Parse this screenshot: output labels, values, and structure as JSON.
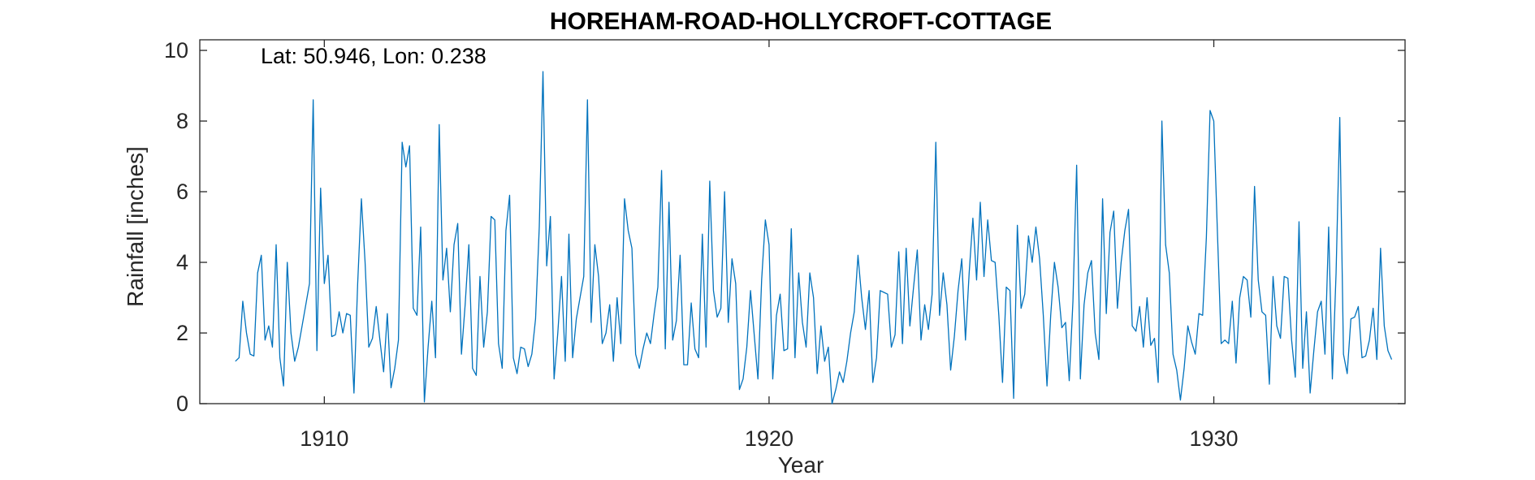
{
  "chart_data": {
    "type": "line",
    "title": "HOREHAM-ROAD-HOLLYCROFT-COTTAGE",
    "annotation": "Lat: 50.946, Lon: 0.238",
    "xlabel": "Year",
    "ylabel": "Rainfall [inches]",
    "xlim": [
      1907.2,
      1934.3
    ],
    "ylim": [
      0,
      10.3
    ],
    "xticks": [
      1910,
      1920,
      1930
    ],
    "xtick_labels": [
      "1910",
      "1920",
      "1930"
    ],
    "yticks": [
      0,
      2,
      4,
      6,
      8,
      10
    ],
    "ytick_labels": [
      "0",
      "2",
      "4",
      "6",
      "8",
      "10"
    ],
    "grid": false,
    "series": [
      {
        "color": "#0072bd",
        "x_start": 1908.0,
        "x_step": 0.08333,
        "values": [
          1.2,
          1.3,
          2.9,
          2.0,
          1.4,
          1.35,
          3.7,
          4.2,
          1.8,
          2.2,
          1.6,
          4.5,
          1.3,
          0.5,
          4.0,
          2.0,
          1.2,
          1.6,
          2.2,
          2.8,
          3.4,
          8.6,
          1.5,
          6.1,
          3.4,
          4.2,
          1.9,
          1.95,
          2.6,
          2.0,
          2.55,
          2.5,
          0.3,
          3.4,
          5.8,
          4.0,
          1.6,
          1.85,
          2.75,
          1.8,
          0.9,
          2.55,
          0.45,
          1.0,
          1.8,
          7.4,
          6.7,
          7.3,
          2.7,
          2.5,
          5.0,
          0.05,
          1.6,
          2.9,
          1.3,
          7.9,
          3.5,
          4.4,
          2.6,
          4.5,
          5.1,
          1.4,
          2.8,
          4.5,
          1.0,
          0.8,
          3.6,
          1.6,
          2.6,
          5.3,
          5.2,
          1.7,
          1.0,
          4.9,
          5.9,
          1.3,
          0.85,
          1.6,
          1.55,
          1.05,
          1.4,
          2.4,
          5.0,
          9.4,
          3.9,
          5.3,
          0.7,
          2.0,
          3.6,
          1.2,
          4.8,
          1.3,
          2.4,
          3.0,
          3.6,
          8.6,
          2.3,
          4.5,
          3.6,
          1.7,
          2.0,
          2.8,
          1.2,
          3.0,
          1.7,
          5.8,
          4.9,
          4.4,
          1.4,
          1.0,
          1.55,
          2.0,
          1.7,
          2.55,
          3.3,
          6.6,
          1.55,
          5.7,
          1.8,
          2.35,
          4.2,
          1.1,
          1.1,
          2.85,
          1.55,
          1.3,
          4.8,
          1.6,
          6.3,
          3.2,
          2.45,
          2.7,
          6.0,
          2.3,
          4.1,
          3.4,
          0.4,
          0.7,
          1.6,
          3.2,
          1.95,
          0.7,
          3.5,
          5.2,
          4.5,
          0.7,
          2.5,
          3.1,
          1.5,
          1.55,
          4.95,
          1.3,
          3.7,
          2.3,
          1.6,
          3.7,
          3.0,
          0.85,
          2.2,
          1.2,
          1.6,
          0.0,
          0.4,
          0.9,
          0.6,
          1.2,
          2.0,
          2.6,
          4.2,
          3.0,
          2.1,
          3.2,
          0.6,
          1.3,
          3.2,
          3.15,
          3.1,
          1.6,
          1.95,
          4.3,
          1.7,
          4.4,
          2.2,
          3.3,
          4.35,
          1.8,
          2.8,
          2.1,
          3.1,
          7.4,
          2.5,
          3.7,
          2.8,
          0.95,
          1.9,
          3.2,
          4.1,
          1.8,
          3.7,
          5.25,
          3.5,
          5.7,
          3.6,
          5.2,
          4.05,
          4.0,
          2.5,
          0.6,
          3.3,
          3.2,
          0.15,
          5.05,
          2.7,
          3.1,
          4.75,
          4.0,
          5.0,
          4.1,
          2.5,
          0.5,
          2.5,
          4.0,
          3.3,
          2.15,
          2.3,
          0.65,
          2.9,
          6.75,
          0.7,
          2.8,
          3.7,
          4.05,
          2.0,
          1.25,
          5.8,
          2.55,
          4.85,
          5.45,
          2.7,
          4.0,
          4.9,
          5.5,
          2.2,
          2.05,
          2.75,
          1.6,
          3.0,
          1.65,
          1.85,
          0.6,
          8.0,
          4.5,
          3.7,
          1.4,
          0.95,
          0.1,
          1.0,
          2.2,
          1.75,
          1.4,
          2.55,
          2.5,
          4.7,
          8.3,
          8.0,
          4.8,
          1.7,
          1.8,
          1.7,
          2.9,
          1.15,
          3.0,
          3.6,
          3.5,
          2.45,
          6.15,
          3.5,
          2.6,
          2.5,
          0.55,
          3.6,
          2.2,
          1.85,
          3.6,
          3.55,
          1.8,
          0.75,
          5.15,
          1.0,
          2.6,
          0.3,
          1.5,
          2.6,
          2.9,
          1.4,
          5.0,
          0.7,
          3.7,
          8.1,
          1.4,
          0.85,
          2.4,
          2.45,
          2.75,
          1.3,
          1.35,
          1.8,
          2.7,
          1.25,
          4.4,
          2.2,
          1.5,
          1.25
        ]
      }
    ]
  }
}
